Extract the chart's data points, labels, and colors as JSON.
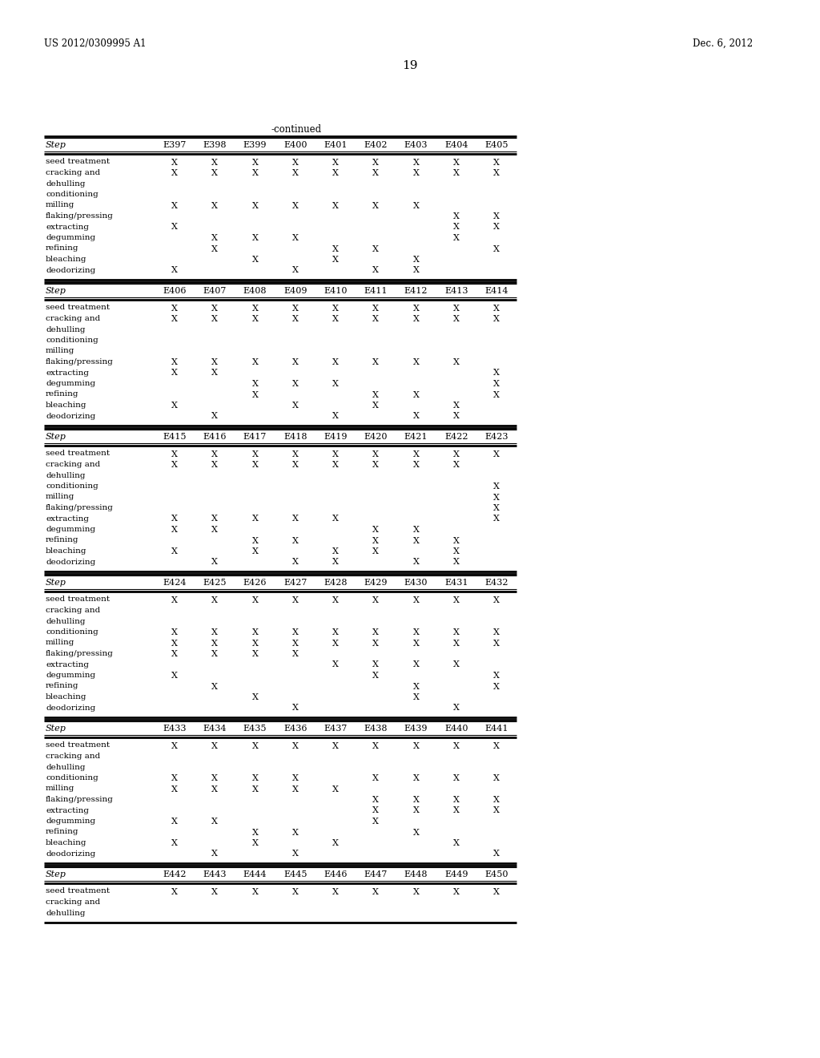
{
  "patent_number": "US 2012/0309995 A1",
  "date": "Dec. 6, 2012",
  "page_number": "19",
  "continued_label": "-continued",
  "background_color": "#ffffff",
  "text_color": "#000000",
  "tables": [
    {
      "header_cols": [
        "Step",
        "E397",
        "E398",
        "E399",
        "E400",
        "E401",
        "E402",
        "E403",
        "E404",
        "E405"
      ],
      "rows": [
        [
          "seed treatment",
          "X",
          "X",
          "X",
          "X",
          "X",
          "X",
          "X",
          "X",
          "X"
        ],
        [
          "cracking and",
          "X",
          "X",
          "X",
          "X",
          "X",
          "X",
          "X",
          "X",
          "X"
        ],
        [
          "dehulling",
          "",
          "",
          "",
          "",
          "",
          "",
          "",
          "",
          ""
        ],
        [
          "conditioning",
          "",
          "",
          "",
          "",
          "",
          "",
          "",
          "",
          ""
        ],
        [
          "milling",
          "X",
          "X",
          "X",
          "X",
          "X",
          "X",
          "X",
          "",
          ""
        ],
        [
          "flaking/pressing",
          "",
          "",
          "",
          "",
          "",
          "",
          "",
          "X",
          "X"
        ],
        [
          "extracting",
          "X",
          "",
          "",
          "",
          "",
          "",
          "",
          "X",
          "X"
        ],
        [
          "degumming",
          "",
          "X",
          "X",
          "X",
          "",
          "",
          "",
          "X",
          ""
        ],
        [
          "refining",
          "",
          "X",
          "",
          "",
          "X",
          "X",
          "",
          "",
          "X"
        ],
        [
          "bleaching",
          "",
          "",
          "X",
          "",
          "X",
          "",
          "X",
          "",
          ""
        ],
        [
          "deodorizing",
          "X",
          "",
          "",
          "X",
          "",
          "X",
          "X",
          "",
          ""
        ]
      ]
    },
    {
      "header_cols": [
        "Step",
        "E406",
        "E407",
        "E408",
        "E409",
        "E410",
        "E411",
        "E412",
        "E413",
        "E414"
      ],
      "rows": [
        [
          "seed treatment",
          "X",
          "X",
          "X",
          "X",
          "X",
          "X",
          "X",
          "X",
          "X"
        ],
        [
          "cracking and",
          "X",
          "X",
          "X",
          "X",
          "X",
          "X",
          "X",
          "X",
          "X"
        ],
        [
          "dehulling",
          "",
          "",
          "",
          "",
          "",
          "",
          "",
          "",
          ""
        ],
        [
          "conditioning",
          "",
          "",
          "",
          "",
          "",
          "",
          "",
          "",
          ""
        ],
        [
          "milling",
          "",
          "",
          "",
          "",
          "",
          "",
          "",
          "",
          ""
        ],
        [
          "flaking/pressing",
          "X",
          "X",
          "X",
          "X",
          "X",
          "X",
          "X",
          "X",
          ""
        ],
        [
          "extracting",
          "X",
          "X",
          "",
          "",
          "",
          "",
          "",
          "",
          "X"
        ],
        [
          "degumming",
          "",
          "",
          "X",
          "X",
          "X",
          "",
          "",
          "",
          "X"
        ],
        [
          "refining",
          "",
          "",
          "X",
          "",
          "",
          "X",
          "X",
          "",
          "X"
        ],
        [
          "bleaching",
          "X",
          "",
          "",
          "X",
          "",
          "X",
          "",
          "X",
          ""
        ],
        [
          "deodorizing",
          "",
          "X",
          "",
          "",
          "X",
          "",
          "X",
          "X",
          ""
        ]
      ]
    },
    {
      "header_cols": [
        "Step",
        "E415",
        "E416",
        "E417",
        "E418",
        "E419",
        "E420",
        "E421",
        "E422",
        "E423"
      ],
      "rows": [
        [
          "seed treatment",
          "X",
          "X",
          "X",
          "X",
          "X",
          "X",
          "X",
          "X",
          "X"
        ],
        [
          "cracking and",
          "X",
          "X",
          "X",
          "X",
          "X",
          "X",
          "X",
          "X",
          ""
        ],
        [
          "dehulling",
          "",
          "",
          "",
          "",
          "",
          "",
          "",
          "",
          ""
        ],
        [
          "conditioning",
          "",
          "",
          "",
          "",
          "",
          "",
          "",
          "",
          "X"
        ],
        [
          "milling",
          "",
          "",
          "",
          "",
          "",
          "",
          "",
          "",
          "X"
        ],
        [
          "flaking/pressing",
          "",
          "",
          "",
          "",
          "",
          "",
          "",
          "",
          "X"
        ],
        [
          "extracting",
          "X",
          "X",
          "X",
          "X",
          "X",
          "",
          "",
          "",
          "X"
        ],
        [
          "degumming",
          "X",
          "X",
          "",
          "",
          "",
          "X",
          "X",
          "",
          ""
        ],
        [
          "refining",
          "",
          "",
          "X",
          "X",
          "",
          "X",
          "X",
          "X",
          ""
        ],
        [
          "bleaching",
          "X",
          "",
          "X",
          "",
          "X",
          "X",
          "",
          "X",
          ""
        ],
        [
          "deodorizing",
          "",
          "X",
          "",
          "X",
          "X",
          "",
          "X",
          "X",
          ""
        ]
      ]
    },
    {
      "header_cols": [
        "Step",
        "E424",
        "E425",
        "E426",
        "E427",
        "E428",
        "E429",
        "E430",
        "E431",
        "E432"
      ],
      "rows": [
        [
          "seed treatment",
          "X",
          "X",
          "X",
          "X",
          "X",
          "X",
          "X",
          "X",
          "X"
        ],
        [
          "cracking and",
          "",
          "",
          "",
          "",
          "",
          "",
          "",
          "",
          ""
        ],
        [
          "dehulling",
          "",
          "",
          "",
          "",
          "",
          "",
          "",
          "",
          ""
        ],
        [
          "conditioning",
          "X",
          "X",
          "X",
          "X",
          "X",
          "X",
          "X",
          "X",
          "X"
        ],
        [
          "milling",
          "X",
          "X",
          "X",
          "X",
          "X",
          "X",
          "X",
          "X",
          "X"
        ],
        [
          "flaking/pressing",
          "X",
          "X",
          "X",
          "X",
          "",
          "",
          "",
          "",
          ""
        ],
        [
          "extracting",
          "",
          "",
          "",
          "",
          "X",
          "X",
          "X",
          "X",
          ""
        ],
        [
          "degumming",
          "X",
          "",
          "",
          "",
          "",
          "X",
          "",
          "",
          "X"
        ],
        [
          "refining",
          "",
          "X",
          "",
          "",
          "",
          "",
          "X",
          "",
          "X"
        ],
        [
          "bleaching",
          "",
          "",
          "X",
          "",
          "",
          "",
          "X",
          "",
          ""
        ],
        [
          "deodorizing",
          "",
          "",
          "",
          "X",
          "",
          "",
          "",
          "X",
          ""
        ]
      ]
    },
    {
      "header_cols": [
        "Step",
        "E433",
        "E434",
        "E435",
        "E436",
        "E437",
        "E438",
        "E439",
        "E440",
        "E441"
      ],
      "rows": [
        [
          "seed treatment",
          "X",
          "X",
          "X",
          "X",
          "X",
          "X",
          "X",
          "X",
          "X"
        ],
        [
          "cracking and",
          "",
          "",
          "",
          "",
          "",
          "",
          "",
          "",
          ""
        ],
        [
          "dehulling",
          "",
          "",
          "",
          "",
          "",
          "",
          "",
          "",
          ""
        ],
        [
          "conditioning",
          "X",
          "X",
          "X",
          "X",
          "",
          "X",
          "X",
          "X",
          "X"
        ],
        [
          "milling",
          "X",
          "X",
          "X",
          "X",
          "X",
          "",
          "",
          "",
          ""
        ],
        [
          "flaking/pressing",
          "",
          "",
          "",
          "",
          "",
          "X",
          "X",
          "X",
          "X"
        ],
        [
          "extracting",
          "",
          "",
          "",
          "",
          "",
          "X",
          "X",
          "X",
          "X"
        ],
        [
          "degumming",
          "X",
          "X",
          "",
          "",
          "",
          "X",
          "",
          "",
          ""
        ],
        [
          "refining",
          "",
          "",
          "X",
          "X",
          "",
          "",
          "X",
          "",
          ""
        ],
        [
          "bleaching",
          "X",
          "",
          "X",
          "",
          "X",
          "",
          "",
          "X",
          ""
        ],
        [
          "deodorizing",
          "",
          "X",
          "",
          "X",
          "",
          "",
          "",
          "",
          "X"
        ]
      ]
    },
    {
      "header_cols": [
        "Step",
        "E442",
        "E443",
        "E444",
        "E445",
        "E446",
        "E447",
        "E448",
        "E449",
        "E450"
      ],
      "rows": [
        [
          "seed treatment",
          "X",
          "X",
          "X",
          "X",
          "X",
          "X",
          "X",
          "X",
          "X"
        ],
        [
          "cracking and",
          "",
          "",
          "",
          "",
          "",
          "",
          "",
          "",
          ""
        ],
        [
          "dehulling",
          "",
          "",
          "",
          "",
          "",
          "",
          "",
          "",
          ""
        ]
      ]
    }
  ]
}
